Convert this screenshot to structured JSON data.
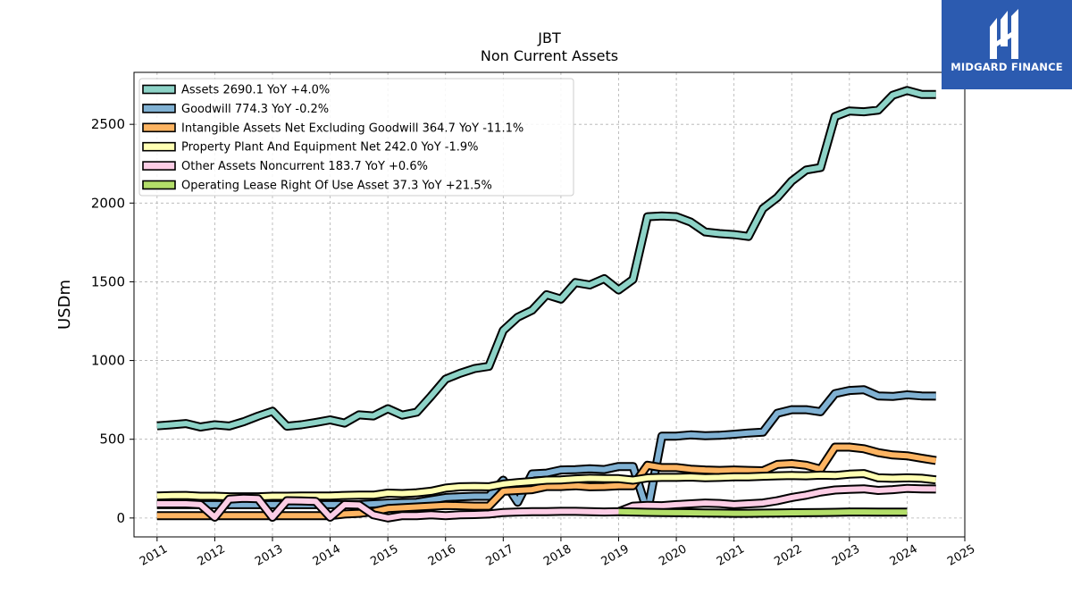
{
  "logo": {
    "text": "MIDGARD FINANCE"
  },
  "chart_data": {
    "type": "line",
    "title": "JBT",
    "subtitle": "Non Current  Assets",
    "ylabel": "USDm",
    "xlim": [
      2010.6,
      2025.0
    ],
    "ylim": [
      -120,
      2830
    ],
    "x_ticks": [
      "2011",
      "2012",
      "2013",
      "2014",
      "2015",
      "2016",
      "2017",
      "2018",
      "2019",
      "2020",
      "2021",
      "2022",
      "2023",
      "2024",
      "2025"
    ],
    "y_ticks": [
      0,
      500,
      1000,
      1500,
      2000,
      2500
    ],
    "grid": true,
    "legend_position": "top-left",
    "series": [
      {
        "name": "Assets  2690.1 YoY +4.0%",
        "color": "#8dd3c7",
        "points": [
          [
            2011.0,
            585
          ],
          [
            2011.25,
            592
          ],
          [
            2011.5,
            600
          ],
          [
            2011.75,
            578
          ],
          [
            2012.0,
            592
          ],
          [
            2012.25,
            584
          ],
          [
            2012.5,
            611
          ],
          [
            2012.75,
            647
          ],
          [
            2013.0,
            678
          ],
          [
            2013.25,
            583
          ],
          [
            2013.5,
            592
          ],
          [
            2013.75,
            607
          ],
          [
            2014.0,
            623
          ],
          [
            2014.25,
            603
          ],
          [
            2014.5,
            655
          ],
          [
            2014.75,
            648
          ],
          [
            2015.0,
            694
          ],
          [
            2015.25,
            653
          ],
          [
            2015.5,
            672
          ],
          [
            2015.75,
            774
          ],
          [
            2016.0,
            882
          ],
          [
            2016.25,
            919
          ],
          [
            2016.5,
            949
          ],
          [
            2016.75,
            963
          ],
          [
            2017.0,
            1191
          ],
          [
            2017.25,
            1275
          ],
          [
            2017.5,
            1319
          ],
          [
            2017.75,
            1418
          ],
          [
            2018.0,
            1390
          ],
          [
            2018.25,
            1495
          ],
          [
            2018.5,
            1480
          ],
          [
            2018.75,
            1520
          ],
          [
            2019.0,
            1448
          ],
          [
            2019.25,
            1515
          ],
          [
            2019.5,
            1913
          ],
          [
            2019.75,
            1918
          ],
          [
            2020.0,
            1914
          ],
          [
            2020.25,
            1879
          ],
          [
            2020.5,
            1816
          ],
          [
            2020.75,
            1806
          ],
          [
            2021.0,
            1800
          ],
          [
            2021.25,
            1788
          ],
          [
            2021.5,
            1965
          ],
          [
            2021.75,
            2035
          ],
          [
            2022.0,
            2140
          ],
          [
            2022.25,
            2210
          ],
          [
            2022.5,
            2225
          ],
          [
            2022.75,
            2550
          ],
          [
            2023.0,
            2585
          ],
          [
            2023.25,
            2580
          ],
          [
            2023.5,
            2590
          ],
          [
            2023.75,
            2685
          ],
          [
            2024.0,
            2715
          ],
          [
            2024.25,
            2690
          ],
          [
            2024.5,
            2690
          ]
        ]
      },
      {
        "name": "Goodwill  774.3 YoY -0.2%",
        "color": "#80b1d3",
        "points": [
          [
            2011.0,
            85
          ],
          [
            2011.25,
            85
          ],
          [
            2011.5,
            85
          ],
          [
            2011.75,
            85
          ],
          [
            2012.0,
            85
          ],
          [
            2012.25,
            85
          ],
          [
            2012.5,
            85
          ],
          [
            2012.75,
            85
          ],
          [
            2013.0,
            85
          ],
          [
            2013.25,
            85
          ],
          [
            2013.5,
            85
          ],
          [
            2013.75,
            85
          ],
          [
            2014.0,
            85
          ],
          [
            2014.25,
            85
          ],
          [
            2014.5,
            85
          ],
          [
            2014.75,
            90
          ],
          [
            2015.0,
            95
          ],
          [
            2015.25,
            98
          ],
          [
            2015.5,
            100
          ],
          [
            2015.75,
            115
          ],
          [
            2016.0,
            130
          ],
          [
            2016.25,
            135
          ],
          [
            2016.5,
            138
          ],
          [
            2016.75,
            138
          ],
          [
            2017.0,
            240
          ],
          [
            2017.25,
            100
          ],
          [
            2017.5,
            280
          ],
          [
            2017.75,
            285
          ],
          [
            2018.0,
            305
          ],
          [
            2018.25,
            307
          ],
          [
            2018.5,
            313
          ],
          [
            2018.75,
            308
          ],
          [
            2019.0,
            327
          ],
          [
            2019.25,
            327
          ],
          [
            2019.5,
            40
          ],
          [
            2019.75,
            520
          ],
          [
            2020.0,
            520
          ],
          [
            2020.25,
            528
          ],
          [
            2020.5,
            522
          ],
          [
            2020.75,
            525
          ],
          [
            2021.0,
            532
          ],
          [
            2021.25,
            540
          ],
          [
            2021.5,
            545
          ],
          [
            2021.75,
            665
          ],
          [
            2022.0,
            688
          ],
          [
            2022.25,
            688
          ],
          [
            2022.5,
            675
          ],
          [
            2022.75,
            790
          ],
          [
            2023.0,
            810
          ],
          [
            2023.25,
            815
          ],
          [
            2023.5,
            775
          ],
          [
            2023.75,
            772
          ],
          [
            2024.0,
            782
          ],
          [
            2024.25,
            775
          ],
          [
            2024.5,
            774
          ]
        ]
      },
      {
        "name": "Intangible Assets Net Excluding Goodwill  364.7 YoY -11.1%",
        "color": "#fdb462",
        "points": [
          [
            2011.0,
            15
          ],
          [
            2011.25,
            15
          ],
          [
            2011.5,
            15
          ],
          [
            2011.75,
            15
          ],
          [
            2012.0,
            15
          ],
          [
            2012.25,
            15
          ],
          [
            2012.5,
            15
          ],
          [
            2012.75,
            15
          ],
          [
            2013.0,
            15
          ],
          [
            2013.25,
            15
          ],
          [
            2013.5,
            15
          ],
          [
            2013.75,
            15
          ],
          [
            2014.0,
            15
          ],
          [
            2014.25,
            25
          ],
          [
            2014.5,
            30
          ],
          [
            2014.75,
            40
          ],
          [
            2015.0,
            60
          ],
          [
            2015.25,
            65
          ],
          [
            2015.5,
            70
          ],
          [
            2015.75,
            75
          ],
          [
            2016.0,
            80
          ],
          [
            2016.25,
            78
          ],
          [
            2016.5,
            75
          ],
          [
            2016.75,
            75
          ],
          [
            2017.0,
            170
          ],
          [
            2017.25,
            175
          ],
          [
            2017.5,
            180
          ],
          [
            2017.75,
            200
          ],
          [
            2018.0,
            200
          ],
          [
            2018.25,
            205
          ],
          [
            2018.5,
            198
          ],
          [
            2018.75,
            200
          ],
          [
            2019.0,
            205
          ],
          [
            2019.25,
            205
          ],
          [
            2019.5,
            335
          ],
          [
            2019.75,
            320
          ],
          [
            2020.0,
            320
          ],
          [
            2020.25,
            310
          ],
          [
            2020.5,
            305
          ],
          [
            2020.75,
            302
          ],
          [
            2021.0,
            305
          ],
          [
            2021.25,
            302
          ],
          [
            2021.5,
            300
          ],
          [
            2021.75,
            340
          ],
          [
            2022.0,
            345
          ],
          [
            2022.25,
            335
          ],
          [
            2022.5,
            310
          ],
          [
            2022.75,
            450
          ],
          [
            2023.0,
            450
          ],
          [
            2023.25,
            440
          ],
          [
            2023.5,
            415
          ],
          [
            2023.75,
            400
          ],
          [
            2024.0,
            395
          ],
          [
            2024.25,
            380
          ],
          [
            2024.5,
            365
          ]
        ]
      },
      {
        "name": "Property Plant And Equipment Net  242.0 YoY -1.9%",
        "color": "#ffffb3",
        "points": [
          [
            2011.0,
            140
          ],
          [
            2011.25,
            142
          ],
          [
            2011.5,
            143
          ],
          [
            2011.75,
            138
          ],
          [
            2012.0,
            138
          ],
          [
            2012.25,
            135
          ],
          [
            2012.5,
            135
          ],
          [
            2012.75,
            135
          ],
          [
            2013.0,
            138
          ],
          [
            2013.25,
            138
          ],
          [
            2013.5,
            140
          ],
          [
            2013.75,
            140
          ],
          [
            2014.0,
            140
          ],
          [
            2014.25,
            143
          ],
          [
            2014.5,
            145
          ],
          [
            2014.75,
            145
          ],
          [
            2015.0,
            158
          ],
          [
            2015.25,
            155
          ],
          [
            2015.5,
            160
          ],
          [
            2015.75,
            170
          ],
          [
            2016.0,
            190
          ],
          [
            2016.25,
            198
          ],
          [
            2016.5,
            200
          ],
          [
            2016.75,
            198
          ],
          [
            2017.0,
            215
          ],
          [
            2017.25,
            225
          ],
          [
            2017.5,
            232
          ],
          [
            2017.75,
            240
          ],
          [
            2018.0,
            242
          ],
          [
            2018.25,
            248
          ],
          [
            2018.5,
            252
          ],
          [
            2018.75,
            250
          ],
          [
            2019.0,
            250
          ],
          [
            2019.25,
            240
          ],
          [
            2019.5,
            255
          ],
          [
            2019.75,
            258
          ],
          [
            2020.0,
            258
          ],
          [
            2020.25,
            260
          ],
          [
            2020.5,
            256
          ],
          [
            2020.75,
            258
          ],
          [
            2021.0,
            262
          ],
          [
            2021.25,
            262
          ],
          [
            2021.5,
            265
          ],
          [
            2021.75,
            268
          ],
          [
            2022.0,
            270
          ],
          [
            2022.25,
            268
          ],
          [
            2022.5,
            272
          ],
          [
            2022.75,
            270
          ],
          [
            2023.0,
            278
          ],
          [
            2023.25,
            282
          ],
          [
            2023.5,
            255
          ],
          [
            2023.75,
            252
          ],
          [
            2024.0,
            255
          ],
          [
            2024.25,
            252
          ],
          [
            2024.5,
            242
          ]
        ]
      },
      {
        "name": "Other Assets Noncurrent  183.7 YoY +0.6%",
        "color": "#fccde5",
        "points": [
          [
            2011.0,
            90
          ],
          [
            2011.25,
            90
          ],
          [
            2011.5,
            90
          ],
          [
            2011.75,
            85
          ],
          [
            2012.0,
            5
          ],
          [
            2012.25,
            120
          ],
          [
            2012.5,
            125
          ],
          [
            2012.75,
            122
          ],
          [
            2013.0,
            5
          ],
          [
            2013.25,
            110
          ],
          [
            2013.5,
            108
          ],
          [
            2013.75,
            105
          ],
          [
            2014.0,
            5
          ],
          [
            2014.25,
            85
          ],
          [
            2014.5,
            82
          ],
          [
            2014.75,
            20
          ],
          [
            2015.0,
            0
          ],
          [
            2015.25,
            15
          ],
          [
            2015.5,
            15
          ],
          [
            2015.75,
            20
          ],
          [
            2016.0,
            15
          ],
          [
            2016.25,
            20
          ],
          [
            2016.5,
            22
          ],
          [
            2016.75,
            25
          ],
          [
            2017.0,
            35
          ],
          [
            2017.25,
            38
          ],
          [
            2017.5,
            40
          ],
          [
            2017.75,
            40
          ],
          [
            2018.0,
            42
          ],
          [
            2018.25,
            42
          ],
          [
            2018.5,
            40
          ],
          [
            2018.75,
            38
          ],
          [
            2019.0,
            40
          ],
          [
            2019.25,
            75
          ],
          [
            2019.5,
            80
          ],
          [
            2019.75,
            78
          ],
          [
            2020.0,
            85
          ],
          [
            2020.25,
            90
          ],
          [
            2020.5,
            95
          ],
          [
            2020.75,
            92
          ],
          [
            2021.0,
            85
          ],
          [
            2021.25,
            90
          ],
          [
            2021.5,
            95
          ],
          [
            2021.75,
            110
          ],
          [
            2022.0,
            130
          ],
          [
            2022.25,
            145
          ],
          [
            2022.5,
            165
          ],
          [
            2022.75,
            178
          ],
          [
            2023.0,
            182
          ],
          [
            2023.25,
            185
          ],
          [
            2023.5,
            175
          ],
          [
            2023.75,
            180
          ],
          [
            2024.0,
            188
          ],
          [
            2024.25,
            185
          ],
          [
            2024.5,
            184
          ]
        ]
      },
      {
        "name": "Operating Lease Right Of Use Asset  37.3 YoY +21.5%",
        "color": "#b3de69",
        "points": [
          [
            2019.0,
            40
          ],
          [
            2019.25,
            38
          ],
          [
            2019.5,
            36
          ],
          [
            2019.75,
            35
          ],
          [
            2020.0,
            34
          ],
          [
            2020.25,
            33
          ],
          [
            2020.5,
            32
          ],
          [
            2020.75,
            31
          ],
          [
            2021.0,
            30
          ],
          [
            2021.25,
            30
          ],
          [
            2021.5,
            31
          ],
          [
            2021.75,
            32
          ],
          [
            2022.0,
            33
          ],
          [
            2022.25,
            34
          ],
          [
            2022.5,
            35
          ],
          [
            2022.75,
            36
          ],
          [
            2023.0,
            38
          ],
          [
            2023.25,
            38
          ],
          [
            2023.5,
            37
          ],
          [
            2023.75,
            37
          ],
          [
            2024.0,
            37
          ]
        ]
      }
    ]
  }
}
